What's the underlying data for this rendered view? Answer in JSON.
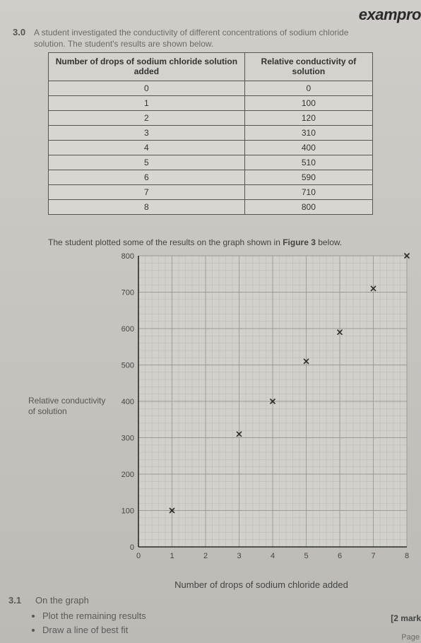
{
  "logo": "exampro",
  "question_number": "3.0",
  "intro_line1": "A student investigated the conductivity of different concentrations of sodium chloride",
  "intro_line2": "solution. The student's results are shown below.",
  "table": {
    "header_left": "Number of drops of sodium chloride solution added",
    "header_right": "Relative conductivity of solution",
    "rows": [
      {
        "drops": "0",
        "cond": "0"
      },
      {
        "drops": "1",
        "cond": "100"
      },
      {
        "drops": "2",
        "cond": "120"
      },
      {
        "drops": "3",
        "cond": "310"
      },
      {
        "drops": "4",
        "cond": "400"
      },
      {
        "drops": "5",
        "cond": "510"
      },
      {
        "drops": "6",
        "cond": "590"
      },
      {
        "drops": "7",
        "cond": "710"
      },
      {
        "drops": "8",
        "cond": "800"
      }
    ]
  },
  "plot_caption_a": "The student plotted some of the results on the graph shown in ",
  "plot_caption_b": "Figure 3",
  "plot_caption_c": " below.",
  "chart": {
    "type": "scatter",
    "xlim": [
      0,
      8
    ],
    "ylim": [
      0,
      800
    ],
    "xtick_step": 1,
    "ytick_step": 100,
    "yticks": [
      "0",
      "100",
      "200",
      "300",
      "400",
      "500",
      "600",
      "700",
      "800"
    ],
    "xticks": [
      "0",
      "1",
      "2",
      "3",
      "4",
      "5",
      "6",
      "7",
      "8"
    ],
    "grid_minor_x": 0.2,
    "grid_minor_y": 20,
    "grid_color": "#9a9a94",
    "grid_minor_color": "#b6b4ae",
    "axis_color": "#2a2a2a",
    "background_color": "#d2d0ca",
    "marker": "x",
    "marker_color": "#2a2a2a",
    "marker_size": 7,
    "points": [
      {
        "x": 1,
        "y": 100
      },
      {
        "x": 3,
        "y": 310
      },
      {
        "x": 4,
        "y": 400
      },
      {
        "x": 5,
        "y": 510
      },
      {
        "x": 6,
        "y": 590
      },
      {
        "x": 7,
        "y": 710
      },
      {
        "x": 8,
        "y": 800
      }
    ]
  },
  "ylabel": "Relative conductivity of solution",
  "xlabel": "Number of drops of sodium chloride added",
  "sub_q_num": "3.1",
  "sub_q_text": "On the graph",
  "bullet_1": "Plot the remaining results",
  "bullet_2": "Draw a line of best fit",
  "marks": "[2 mark",
  "page_label": "Page"
}
